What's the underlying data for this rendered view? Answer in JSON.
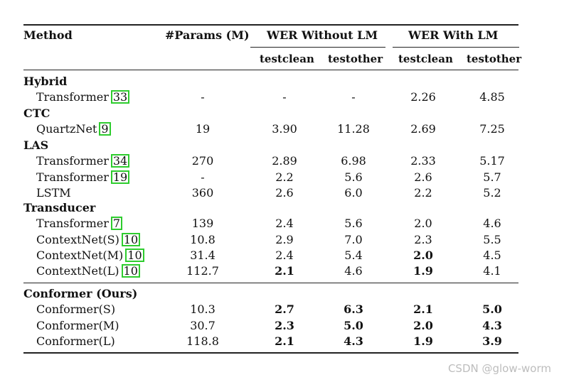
{
  "headers": {
    "method": "Method",
    "params": "#Params (M)",
    "wer_without_lm": "WER Without LM",
    "wer_with_lm": "WER With LM",
    "testclean_1": "testclean",
    "testother_1": "testother",
    "testclean_2": "testclean",
    "testother_2": "testother"
  },
  "groups": [
    {
      "label": "Hybrid",
      "rows": [
        {
          "name": "Transformer",
          "cite": "33",
          "params": "-",
          "wo_clean": "-",
          "wo_other": "-",
          "w_clean": "2.26",
          "w_other": "4.85",
          "bold": []
        }
      ]
    },
    {
      "label": "CTC",
      "rows": [
        {
          "name": "QuartzNet",
          "cite": "9",
          "params": "19",
          "wo_clean": "3.90",
          "wo_other": "11.28",
          "w_clean": "2.69",
          "w_other": "7.25",
          "bold": []
        }
      ]
    },
    {
      "label": "LAS",
      "rows": [
        {
          "name": "Transformer",
          "cite": "34",
          "params": "270",
          "wo_clean": "2.89",
          "wo_other": "6.98",
          "w_clean": "2.33",
          "w_other": "5.17",
          "bold": []
        },
        {
          "name": "Transformer",
          "cite": "19",
          "params": "-",
          "wo_clean": "2.2",
          "wo_other": "5.6",
          "w_clean": "2.6",
          "w_other": "5.7",
          "bold": []
        },
        {
          "name": "LSTM",
          "cite": "",
          "params": "360",
          "wo_clean": "2.6",
          "wo_other": "6.0",
          "w_clean": "2.2",
          "w_other": "5.2",
          "bold": []
        }
      ]
    },
    {
      "label": "Transducer",
      "rows": [
        {
          "name": "Transformer",
          "cite": "7",
          "params": "139",
          "wo_clean": "2.4",
          "wo_other": "5.6",
          "w_clean": "2.0",
          "w_other": "4.6",
          "bold": []
        },
        {
          "name": "ContextNet(S)",
          "cite": "10",
          "params": "10.8",
          "wo_clean": "2.9",
          "wo_other": "7.0",
          "w_clean": "2.3",
          "w_other": "5.5",
          "bold": []
        },
        {
          "name": "ContextNet(M)",
          "cite": "10",
          "params": "31.4",
          "wo_clean": "2.4",
          "wo_other": "5.4",
          "w_clean": "2.0",
          "w_other": "4.5",
          "bold": [
            "w_clean"
          ]
        },
        {
          "name": "ContextNet(L)",
          "cite": "10",
          "params": "112.7",
          "wo_clean": "2.1",
          "wo_other": "4.6",
          "w_clean": "1.9",
          "w_other": "4.1",
          "bold": [
            "wo_clean",
            "w_clean"
          ]
        }
      ]
    },
    {
      "label": "Conformer (Ours)",
      "rows": [
        {
          "name": "Conformer(S)",
          "cite": "",
          "params": "10.3",
          "wo_clean": "2.7",
          "wo_other": "6.3",
          "w_clean": "2.1",
          "w_other": "5.0",
          "bold": [
            "wo_clean",
            "wo_other",
            "w_clean",
            "w_other"
          ]
        },
        {
          "name": "Conformer(M)",
          "cite": "",
          "params": "30.7",
          "wo_clean": "2.3",
          "wo_other": "5.0",
          "w_clean": "2.0",
          "w_other": "4.3",
          "bold": [
            "wo_clean",
            "wo_other",
            "w_clean",
            "w_other"
          ]
        },
        {
          "name": "Conformer(L)",
          "cite": "",
          "params": "118.8",
          "wo_clean": "2.1",
          "wo_other": "4.3",
          "w_clean": "1.9",
          "w_other": "3.9",
          "bold": [
            "wo_clean",
            "wo_other",
            "w_clean",
            "w_other"
          ]
        }
      ]
    }
  ],
  "watermark": "CSDN @glow-worm"
}
